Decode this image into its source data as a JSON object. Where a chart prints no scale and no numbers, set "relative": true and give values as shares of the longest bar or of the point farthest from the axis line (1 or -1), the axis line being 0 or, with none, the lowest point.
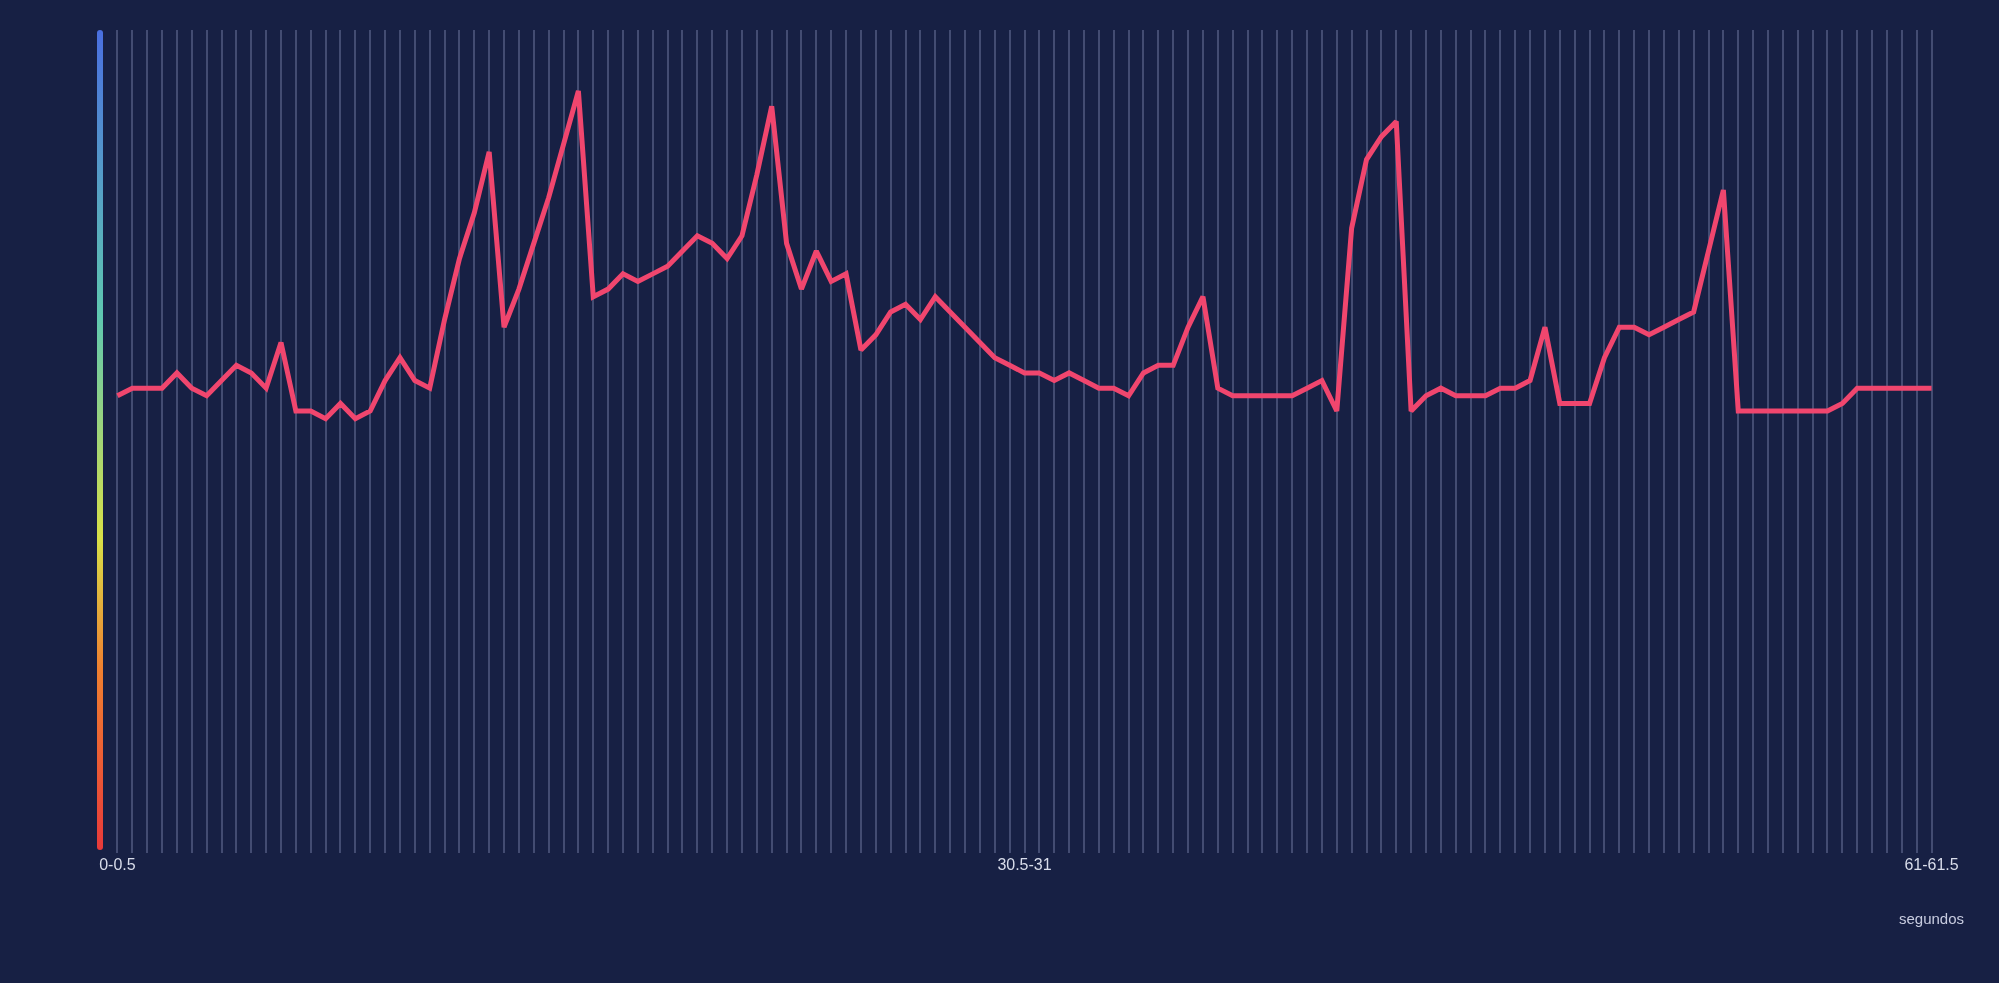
{
  "chart_data": {
    "type": "line",
    "relative": true,
    "xlabel": "segundos",
    "grid": "x",
    "marker": "none",
    "line_style": "solid",
    "categories": [
      "0-0.5",
      null,
      null,
      null,
      null,
      null,
      null,
      null,
      null,
      null,
      null,
      null,
      null,
      null,
      null,
      null,
      null,
      null,
      null,
      null,
      null,
      null,
      null,
      null,
      null,
      null,
      null,
      null,
      null,
      null,
      null,
      null,
      null,
      null,
      null,
      null,
      null,
      null,
      null,
      null,
      null,
      null,
      null,
      null,
      null,
      null,
      null,
      null,
      null,
      null,
      null,
      null,
      null,
      null,
      null,
      null,
      null,
      null,
      null,
      null,
      null,
      "30.5-31",
      null,
      null,
      null,
      null,
      null,
      null,
      null,
      null,
      null,
      null,
      null,
      null,
      null,
      null,
      null,
      null,
      null,
      null,
      null,
      null,
      null,
      null,
      null,
      null,
      null,
      null,
      null,
      null,
      null,
      null,
      null,
      null,
      null,
      null,
      null,
      null,
      null,
      null,
      null,
      null,
      null,
      null,
      null,
      null,
      null,
      null,
      null,
      null,
      null,
      null,
      null,
      null,
      null,
      null,
      null,
      null,
      null,
      null,
      null,
      null,
      "61-61.5"
    ],
    "series": [
      {
        "color": "#f0466e",
        "values": [
          0.6,
          0.61,
          0.61,
          0.61,
          0.63,
          0.61,
          0.6,
          0.62,
          0.64,
          0.63,
          0.61,
          0.67,
          0.58,
          0.58,
          0.57,
          0.59,
          0.57,
          0.58,
          0.62,
          0.65,
          0.62,
          0.61,
          0.7,
          0.78,
          0.84,
          0.92,
          0.69,
          0.74,
          0.8,
          0.86,
          0.93,
          1,
          0.73,
          0.74,
          0.76,
          0.75,
          0.76,
          0.77,
          0.79,
          0.81,
          0.8,
          0.78,
          0.81,
          0.89,
          0.98,
          0.8,
          0.74,
          0.79,
          0.75,
          0.76,
          0.66,
          0.68,
          0.71,
          0.72,
          0.7,
          0.73,
          0.71,
          0.69,
          0.67,
          0.65,
          0.64,
          0.63,
          0.63,
          0.62,
          0.63,
          0.62,
          0.61,
          0.61,
          0.6,
          0.63,
          0.64,
          0.64,
          0.69,
          0.73,
          0.61,
          0.6,
          0.6,
          0.6,
          0.6,
          0.6,
          0.61,
          0.62,
          0.58,
          0.82,
          0.91,
          0.94,
          0.96,
          0.58,
          0.6,
          0.61,
          0.6,
          0.6,
          0.6,
          0.61,
          0.61,
          0.62,
          0.69,
          0.59,
          0.59,
          0.59,
          0.65,
          0.69,
          0.69,
          0.68,
          0.69,
          0.7,
          0.71,
          0.79,
          0.87,
          0.58,
          0.58,
          0.58,
          0.58,
          0.58,
          0.58,
          0.58,
          0.59,
          0.61,
          0.61,
          0.61,
          0.61,
          0.61,
          0.61
        ]
      }
    ]
  }
}
